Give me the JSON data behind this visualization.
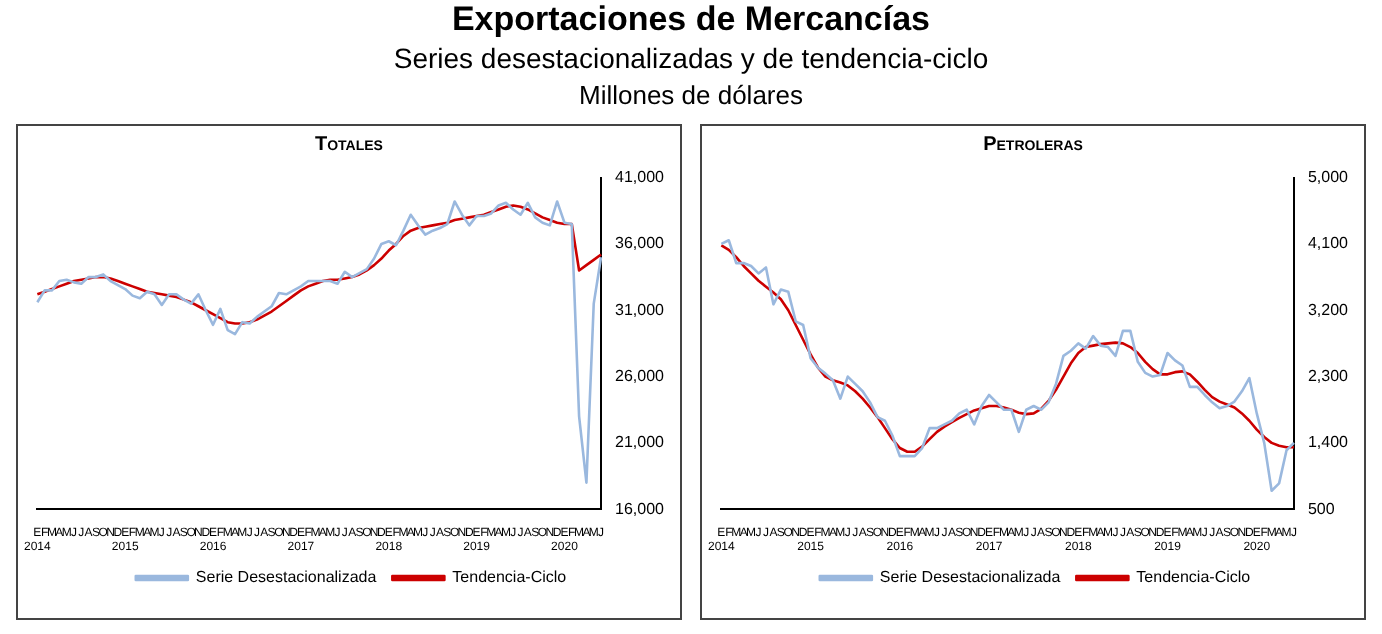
{
  "chart_data": [
    {
      "type": "other",
      "title": "Exportaciones de Mercancías",
      "subtitle": "Series desestacionalizadas y de tendencia-ciclo",
      "annotations": [
        "Millones de dólares"
      ]
    },
    {
      "type": "line",
      "title": "Totales",
      "categories": [
        "E",
        "F",
        "M",
        "A",
        "M",
        "J",
        "J",
        "A",
        "S",
        "O",
        "N",
        "D",
        "E",
        "F",
        "M",
        "A",
        "M",
        "J",
        "J",
        "A",
        "S",
        "O",
        "N",
        "D",
        "E",
        "F",
        "M",
        "A",
        "M",
        "J",
        "J",
        "A",
        "S",
        "O",
        "N",
        "D",
        "E",
        "F",
        "M",
        "A",
        "M",
        "J",
        "J",
        "A",
        "S",
        "O",
        "N",
        "D",
        "E",
        "F",
        "M",
        "A",
        "M",
        "J",
        "J",
        "A",
        "S",
        "O",
        "N",
        "D",
        "E",
        "F",
        "M",
        "A",
        "M",
        "J",
        "J",
        "A",
        "S",
        "O",
        "N",
        "D",
        "E",
        "F",
        "M",
        "A",
        "M",
        "J"
      ],
      "annotations": [
        "2014",
        "2015",
        "2016",
        "2017",
        "2018",
        "2019",
        "2020"
      ],
      "series": [
        {
          "name": "Serie Desestacionalizada",
          "color": "#9ab8de",
          "values": [
            31600,
            32500,
            32500,
            33200,
            33300,
            33100,
            33000,
            33500,
            33500,
            33700,
            33200,
            32900,
            32600,
            32100,
            31900,
            32400,
            32200,
            31400,
            32200,
            32200,
            31800,
            31500,
            32200,
            31000,
            29900,
            31100,
            29500,
            29200,
            30100,
            30000,
            30500,
            30900,
            31300,
            32300,
            32200,
            32500,
            32800,
            33200,
            33200,
            33200,
            33200,
            33000,
            33900,
            33500,
            33800,
            34100,
            34900,
            36000,
            36200,
            35900,
            37000,
            38200,
            37400,
            36700,
            37000,
            37200,
            37500,
            39200,
            38200,
            37400,
            38100,
            38100,
            38300,
            38900,
            39100,
            38600,
            38200,
            39100,
            38000,
            37600,
            37400,
            39200,
            37600,
            37500,
            23000,
            18000,
            31500,
            35000
          ]
        },
        {
          "name": "Tendencia-Ciclo",
          "color": "#cc0000",
          "values": [
            32200,
            32400,
            32600,
            32800,
            33000,
            33200,
            33300,
            33400,
            33500,
            33500,
            33400,
            33200,
            33000,
            32800,
            32600,
            32400,
            32300,
            32200,
            32100,
            32000,
            31800,
            31600,
            31300,
            31000,
            30700,
            30400,
            30100,
            30000,
            30000,
            30100,
            30300,
            30600,
            30900,
            31300,
            31700,
            32100,
            32500,
            32800,
            33000,
            33200,
            33300,
            33300,
            33400,
            33500,
            33700,
            34000,
            34400,
            34900,
            35500,
            36000,
            36600,
            37000,
            37200,
            37300,
            37400,
            37500,
            37600,
            37800,
            37900,
            38000,
            38100,
            38200,
            38400,
            38600,
            38800,
            38900,
            38800,
            38600,
            38300,
            38000,
            37800,
            37600,
            37500,
            37500,
            34000,
            34400,
            34800,
            35200
          ]
        }
      ],
      "ylim": [
        16000,
        41000
      ],
      "yticks": [
        {
          "value": 16000,
          "label": "16,000"
        },
        {
          "value": 21000,
          "label": "21,000"
        },
        {
          "value": 26000,
          "label": "26,000"
        },
        {
          "value": 31000,
          "label": "31,000"
        },
        {
          "value": 36000,
          "label": "36,000"
        },
        {
          "value": 41000,
          "label": "41,000"
        }
      ],
      "legend": "bottom",
      "marker": "none",
      "line_style": "solid"
    },
    {
      "type": "line",
      "title": "Petroleras",
      "categories": [
        "E",
        "F",
        "M",
        "A",
        "M",
        "J",
        "J",
        "A",
        "S",
        "O",
        "N",
        "D",
        "E",
        "F",
        "M",
        "A",
        "M",
        "J",
        "J",
        "A",
        "S",
        "O",
        "N",
        "D",
        "E",
        "F",
        "M",
        "A",
        "M",
        "J",
        "J",
        "A",
        "S",
        "O",
        "N",
        "D",
        "E",
        "F",
        "M",
        "A",
        "M",
        "J",
        "J",
        "A",
        "S",
        "O",
        "N",
        "D",
        "E",
        "F",
        "M",
        "A",
        "M",
        "J",
        "J",
        "A",
        "S",
        "O",
        "N",
        "D",
        "E",
        "F",
        "M",
        "A",
        "M",
        "J",
        "J",
        "A",
        "S",
        "O",
        "N",
        "D",
        "E",
        "F",
        "M",
        "A",
        "M",
        "J"
      ],
      "annotations": [
        "2014",
        "2015",
        "2016",
        "2017",
        "2018",
        "2019",
        "2020"
      ],
      "series": [
        {
          "name": "Serie Desestacionalizada",
          "color": "#9ab8de",
          "values": [
            4100,
            4150,
            3840,
            3840,
            3800,
            3700,
            3780,
            3280,
            3480,
            3450,
            3050,
            3000,
            2550,
            2420,
            2340,
            2250,
            2000,
            2300,
            2200,
            2100,
            1950,
            1750,
            1700,
            1500,
            1220,
            1220,
            1220,
            1330,
            1600,
            1600,
            1650,
            1700,
            1800,
            1850,
            1650,
            1900,
            2050,
            1950,
            1850,
            1850,
            1550,
            1850,
            1900,
            1850,
            1950,
            2200,
            2580,
            2650,
            2750,
            2680,
            2850,
            2720,
            2700,
            2580,
            2920,
            2920,
            2500,
            2350,
            2300,
            2320,
            2620,
            2520,
            2450,
            2160,
            2160,
            2050,
            1950,
            1870,
            1900,
            1960,
            2100,
            2280,
            1800,
            1400,
            750,
            850,
            1300,
            1400
          ]
        },
        {
          "name": "Tendencia-Ciclo",
          "color": "#cc0000",
          "values": [
            4080,
            4020,
            3920,
            3800,
            3700,
            3600,
            3520,
            3440,
            3350,
            3200,
            3000,
            2800,
            2600,
            2420,
            2300,
            2250,
            2220,
            2180,
            2100,
            2000,
            1880,
            1750,
            1600,
            1450,
            1330,
            1280,
            1280,
            1350,
            1450,
            1550,
            1620,
            1680,
            1740,
            1790,
            1840,
            1870,
            1900,
            1900,
            1880,
            1850,
            1810,
            1790,
            1800,
            1860,
            1970,
            2120,
            2300,
            2480,
            2620,
            2700,
            2720,
            2740,
            2750,
            2760,
            2750,
            2700,
            2620,
            2500,
            2400,
            2330,
            2330,
            2360,
            2370,
            2330,
            2230,
            2120,
            2020,
            1960,
            1920,
            1880,
            1800,
            1700,
            1580,
            1480,
            1400,
            1360,
            1340,
            1340
          ]
        }
      ],
      "ylim": [
        500,
        5000
      ],
      "yticks": [
        {
          "value": 500,
          "label": "500"
        },
        {
          "value": 1400,
          "label": "1,400"
        },
        {
          "value": 2300,
          "label": "2,300"
        },
        {
          "value": 3200,
          "label": "3,200"
        },
        {
          "value": 4100,
          "label": "4,100"
        },
        {
          "value": 5000,
          "label": "5,000"
        }
      ],
      "legend": "bottom",
      "marker": "none",
      "line_style": "solid"
    }
  ]
}
